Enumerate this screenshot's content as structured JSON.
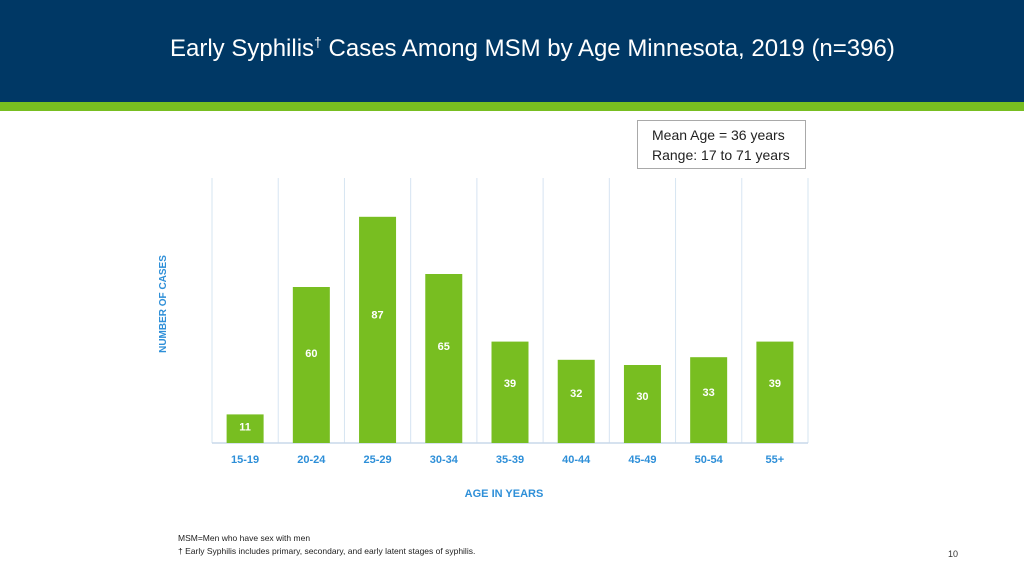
{
  "header": {
    "title": "Early Syphilis",
    "title_dagger": "†",
    "title_rest": " Cases Among MSM by Age Minnesota, 2019 (n=396)"
  },
  "stats": {
    "mean": "Mean Age = 36 years",
    "range": "Range: 17 to 71 years"
  },
  "chart_data": {
    "type": "bar",
    "title": "Early Syphilis† Cases Among MSM by Age Minnesota, 2019 (n=396)",
    "xlabel": "AGE IN YEARS",
    "ylabel": "NUMBER OF CASES",
    "categories": [
      "15-19",
      "20-24",
      "25-29",
      "30-34",
      "35-39",
      "40-44",
      "45-49",
      "50-54",
      "55+"
    ],
    "values": [
      11,
      60,
      87,
      65,
      39,
      32,
      30,
      33,
      39
    ],
    "ylim": [
      0,
      100
    ],
    "grid": "vertical separators between categories",
    "bar_color": "#78BE21",
    "label_color": "#ffffff",
    "axis_label_color": "#2E8FD8"
  },
  "footnotes": {
    "msm": "MSM=Men who have sex with men",
    "dagger": "† Early Syphilis includes primary, secondary, and early latent stages of syphilis."
  },
  "page_number": "10",
  "colors": {
    "header_bg": "#003865",
    "accent": "#78BE21",
    "label_blue": "#2E8FD8"
  }
}
